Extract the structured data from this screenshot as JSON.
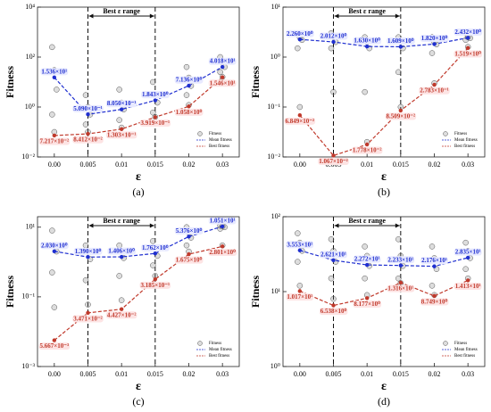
{
  "chart_data": [
    {
      "type": "scatter",
      "label": "(a)",
      "xlabel": "ε",
      "ylabel": "Fitness",
      "annotation": "Best ε range",
      "log_y": true,
      "categories": [
        "0.00",
        "0.005",
        "0.01",
        "0.015",
        "0.02",
        "0.03"
      ],
      "highlight_categories": [
        "0.005",
        "0.015"
      ],
      "ylim": [
        0.01,
        10000
      ],
      "yticks": [
        {
          "value": 0.01,
          "label": "10⁻²"
        },
        {
          "value": 1,
          "label": "10⁰"
        },
        {
          "value": 100,
          "label": "10²"
        },
        {
          "value": 10000,
          "label": "10⁴"
        }
      ],
      "fitness_samples": {
        "name": "Fitness",
        "color": "#777777",
        "values": [
          [
            250,
            30,
            5,
            0.5,
            0.1
          ],
          [
            3,
            1,
            0.5,
            0.2,
            0.1
          ],
          [
            5,
            1.5,
            0.8,
            0.3,
            0.15
          ],
          [
            10,
            3,
            1.5,
            0.6,
            0.4
          ],
          [
            40,
            15,
            7,
            3,
            1.2
          ],
          [
            100,
            60,
            40,
            25,
            16
          ]
        ]
      },
      "series": [
        {
          "name": "Mean fitness",
          "color": "#1f2fd0",
          "values": [
            15.36,
            0.509,
            0.805,
            1.843,
            7.136,
            40.18
          ],
          "value_labels": [
            "1.536×10¹",
            "5.090×10⁻¹",
            "8.050×10⁻¹",
            "1.843×10⁰",
            "7.136×10⁰",
            "4.018×10¹"
          ]
        },
        {
          "name": "Best fitness",
          "color": "#c0392b",
          "values": [
            0.07217,
            0.08412,
            0.1303,
            0.3919,
            1.058,
            15.46
          ],
          "value_labels": [
            "7.217×10⁻²",
            "8.412×10⁻²",
            "1.303×10⁻¹",
            "3.919×10⁻¹",
            "1.058×10⁰",
            "1.546×10¹"
          ]
        }
      ]
    },
    {
      "type": "scatter",
      "label": "(b)",
      "xlabel": "ε",
      "ylabel": "Fitness",
      "annotation": "Best ε range",
      "log_y": true,
      "categories": [
        "0.00",
        "0.005",
        "0.01",
        "0.015",
        "0.02",
        "0.03"
      ],
      "highlight_categories": [
        "0.005",
        "0.015"
      ],
      "ylim": [
        0.01,
        10
      ],
      "yticks": [
        {
          "value": 0.01,
          "label": "10⁻²"
        },
        {
          "value": 0.1,
          "label": "10⁻¹"
        },
        {
          "value": 1,
          "label": "10⁰"
        },
        {
          "value": 10,
          "label": "10¹"
        }
      ],
      "fitness_samples": {
        "name": "Fitness",
        "color": "#777777",
        "values": [
          [
            3,
            2.5,
            2.2,
            1.5,
            0.1
          ],
          [
            3,
            2.5,
            2,
            1.5,
            0.2
          ],
          [
            2.5,
            2,
            1.5,
            0.2,
            0.02
          ],
          [
            2.5,
            2,
            1.5,
            0.5,
            0.1
          ],
          [
            2.5,
            2,
            1.8,
            1.2,
            0.3
          ],
          [
            3,
            2.5,
            2.4,
            2.2,
            1.6
          ]
        ]
      },
      "series": [
        {
          "name": "Mean fitness",
          "color": "#1f2fd0",
          "values": [
            2.26,
            2.012,
            1.63,
            1.609,
            1.82,
            2.432
          ],
          "value_labels": [
            "2.260×10⁰",
            "2.012×10⁰",
            "1.630×10⁰",
            "1.609×10⁰",
            "1.820×10⁰",
            "2.432×10⁰"
          ]
        },
        {
          "name": "Best fitness",
          "color": "#c0392b",
          "values": [
            0.06849,
            0.01067,
            0.01778,
            0.08509,
            0.2783,
            1.519
          ],
          "value_labels": [
            "6.849×10⁻²",
            "1.067×10⁻²",
            "1.778×10⁻²",
            "8.509×10⁻²",
            "2.783×10⁻¹",
            "1.519×10⁰"
          ]
        }
      ]
    },
    {
      "type": "scatter",
      "label": "(c)",
      "xlabel": "ε",
      "ylabel": "Fitness",
      "annotation": "Best ε range",
      "log_y": true,
      "categories": [
        "0.00",
        "0.005",
        "0.01",
        "0.015",
        "0.02",
        "0.03"
      ],
      "highlight_categories": [
        "0.005",
        "0.015"
      ],
      "ylim": [
        0.001,
        20
      ],
      "yticks": [
        {
          "value": 0.001,
          "label": "10⁻³"
        },
        {
          "value": 0.1,
          "label": "10⁻¹"
        },
        {
          "value": 10,
          "label": "10¹"
        }
      ],
      "fitness_samples": {
        "name": "Fitness",
        "color": "#777777",
        "values": [
          [
            8,
            3,
            2,
            0.5,
            0.05
          ],
          [
            3,
            2,
            1.2,
            0.3,
            0.06
          ],
          [
            3,
            2,
            1.3,
            0.4,
            0.08
          ],
          [
            4,
            2.5,
            1.5,
            0.8,
            0.4
          ],
          [
            10,
            7,
            5,
            3,
            2
          ],
          [
            11,
            10.5,
            10,
            9,
            3
          ]
        ]
      },
      "series": [
        {
          "name": "Mean fitness",
          "color": "#1f2fd0",
          "values": [
            2.03,
            1.39,
            1.406,
            1.762,
            5.376,
            10.51
          ],
          "value_labels": [
            "2.030×10⁰",
            "1.390×10⁰",
            "1.406×10⁰",
            "1.762×10⁰",
            "5.376×10⁰",
            "1.051×10¹"
          ]
        },
        {
          "name": "Best fitness",
          "color": "#c0392b",
          "values": [
            0.005667,
            0.03471,
            0.04427,
            0.3185,
            1.675,
            2.801
          ],
          "value_labels": [
            "5.667×10⁻³",
            "3.471×10⁻²",
            "4.427×10⁻²",
            "3.185×10⁻¹",
            "1.675×10⁰",
            "2.801×10⁰"
          ]
        }
      ]
    },
    {
      "type": "scatter",
      "label": "(d)",
      "xlabel": "ε",
      "ylabel": "Fitness",
      "annotation": "Best ε range",
      "log_y": true,
      "categories": [
        "0.00",
        "0.005",
        "0.01",
        "0.015",
        "0.02",
        "0.03"
      ],
      "highlight_categories": [
        "0.005",
        "0.015"
      ],
      "ylim": [
        1,
        100
      ],
      "yticks": [
        {
          "value": 1,
          "label": "10⁰"
        },
        {
          "value": 10,
          "label": "10¹"
        },
        {
          "value": 100,
          "label": "10²"
        }
      ],
      "fitness_samples": {
        "name": "Fitness",
        "color": "#777777",
        "values": [
          [
            60,
            45,
            35,
            25,
            12
          ],
          [
            50,
            35,
            25,
            15,
            8
          ],
          [
            40,
            30,
            22,
            15,
            9
          ],
          [
            50,
            30,
            22,
            15,
            13
          ],
          [
            40,
            28,
            20,
            12,
            9
          ],
          [
            45,
            35,
            28,
            20,
            15
          ]
        ]
      },
      "series": [
        {
          "name": "Mean fitness",
          "color": "#1f2fd0",
          "values": [
            35.53,
            26.21,
            22.72,
            22.33,
            21.76,
            28.35
          ],
          "value_labels": [
            "3.553×10¹",
            "2.621×10¹",
            "2.272×10¹",
            "2.233×10¹",
            "2.176×10¹",
            "2.835×10¹"
          ]
        },
        {
          "name": "Best fitness",
          "color": "#c0392b",
          "values": [
            10.17,
            6.538,
            8.177,
            13.16,
            8.749,
            14.13
          ],
          "value_labels": [
            "1.017×10¹",
            "6.538×10⁰",
            "8.177×10⁰",
            "1.316×10¹",
            "8.749×10⁰",
            "1.413×10¹"
          ]
        }
      ]
    }
  ]
}
